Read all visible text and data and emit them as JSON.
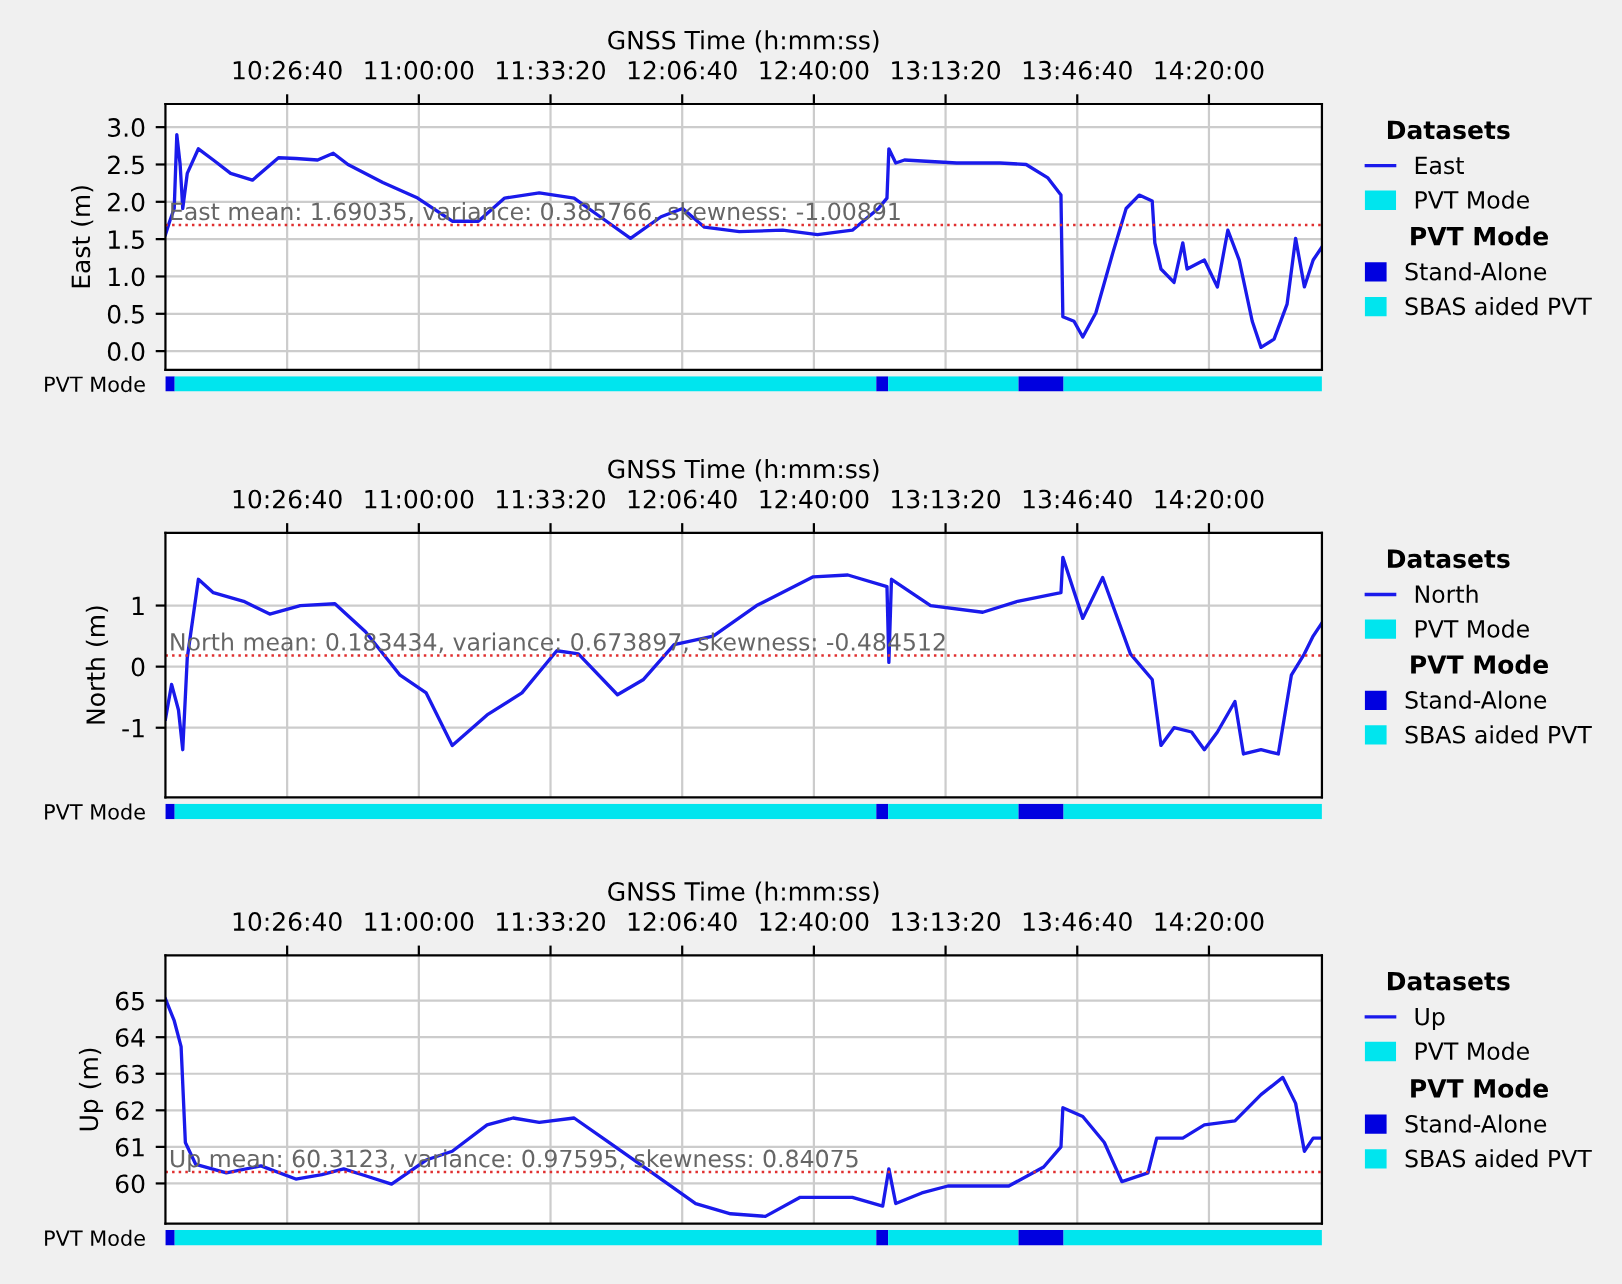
{
  "chart_data": [
    {
      "type": "line",
      "xlabel": "GNSS Time (h:mm:ss)",
      "ylabel": "East (m)",
      "legend_title": "Datasets",
      "legend": "right",
      "grid": true,
      "xlim": [
        9.931,
        14.81
      ],
      "ylim": [
        -0.25,
        3.31
      ],
      "xticks": [
        {
          "value": 10.44444,
          "label": "10:26:40"
        },
        {
          "value": 11.0,
          "label": "11:00:00"
        },
        {
          "value": 11.55556,
          "label": "11:33:20"
        },
        {
          "value": 12.11111,
          "label": "12:06:40"
        },
        {
          "value": 12.66667,
          "label": "12:40:00"
        },
        {
          "value": 13.22222,
          "label": "13:13:20"
        },
        {
          "value": 13.77778,
          "label": "13:46:40"
        },
        {
          "value": 14.33333,
          "label": "14:20:00"
        }
      ],
      "yticks": [
        {
          "value": 0,
          "label": "0.0"
        },
        {
          "value": 0.5,
          "label": "0.5"
        },
        {
          "value": 1,
          "label": "1.0"
        },
        {
          "value": 1.5,
          "label": "1.5"
        },
        {
          "value": 2,
          "label": "2.0"
        },
        {
          "value": 2.5,
          "label": "2.5"
        },
        {
          "value": 3,
          "label": "3.0"
        }
      ],
      "ref_lines": [
        {
          "axis": "y",
          "value": 1.69035,
          "label": "East mean: 1.69035, variance: 0.385766, skewness: -1.00891",
          "color": "#e03030",
          "line_style": "dotted"
        }
      ],
      "series": [
        {
          "name": "East",
          "color": "#1a1aeb",
          "x": [
            9.931,
            9.949,
            9.968,
            9.979,
            9.993,
            10.004,
            10.023,
            10.07,
            10.133,
            10.206,
            10.298,
            10.408,
            10.481,
            10.573,
            10.639,
            10.701,
            10.848,
            10.995,
            11.141,
            11.251,
            11.362,
            11.508,
            11.655,
            11.765,
            11.893,
            12.022,
            12.113,
            12.205,
            12.352,
            12.535,
            12.682,
            12.829,
            12.939,
            12.975,
            12.983,
            13.012,
            13.049,
            13.269,
            13.452,
            13.562,
            13.654,
            13.709,
            13.717,
            13.764,
            13.801,
            13.856,
            13.929,
            13.984,
            14.039,
            14.094,
            14.105,
            14.131,
            14.186,
            14.223,
            14.241,
            14.314,
            14.369,
            14.413,
            14.461,
            14.516,
            14.553,
            14.608,
            14.663,
            14.699,
            14.736,
            14.773,
            14.809
          ],
          "values": [
            1.56,
            1.74,
            1.91,
            2.9,
            2.5,
            1.91,
            2.38,
            2.71,
            2.56,
            2.38,
            2.29,
            2.59,
            2.58,
            2.56,
            2.65,
            2.5,
            2.26,
            2.05,
            1.74,
            1.74,
            2.05,
            2.12,
            2.05,
            1.8,
            1.51,
            1.8,
            1.91,
            1.66,
            1.6,
            1.62,
            1.56,
            1.62,
            1.91,
            2.05,
            2.71,
            2.52,
            2.56,
            2.52,
            2.52,
            2.5,
            2.32,
            2.09,
            0.46,
            0.4,
            0.19,
            0.51,
            1.33,
            1.91,
            2.09,
            2.01,
            1.45,
            1.1,
            0.92,
            1.45,
            1.1,
            1.22,
            0.86,
            1.62,
            1.22,
            0.4,
            0.05,
            0.16,
            0.63,
            1.51,
            0.86,
            1.22,
            1.39
          ]
        }
      ]
    },
    {
      "type": "bar",
      "orientation": "horizontal",
      "categories": [
        "PVT Mode"
      ],
      "xlim": [
        9.931,
        14.81
      ],
      "tick_labels": "y",
      "legend_title": "PVT Mode",
      "legend": "right",
      "series": [
        {
          "name": "Stand-Alone",
          "color": "#0000e0",
          "base": [
            9.93
          ],
          "values": [
            0.04
          ]
        },
        {
          "name": "SBAS aided PVT",
          "color": "#00e5ee",
          "base": [
            9.97
          ],
          "values": [
            2.96
          ]
        },
        {
          "color": "#0000e0",
          "base": [
            12.93
          ],
          "values": [
            0.05
          ]
        },
        {
          "color": "#00e5ee",
          "base": [
            12.98
          ],
          "values": [
            0.55
          ]
        },
        {
          "color": "#0000e0",
          "base": [
            13.53
          ],
          "values": [
            0.19
          ]
        },
        {
          "color": "#00e5ee",
          "base": [
            13.72
          ],
          "values": [
            1.09
          ]
        }
      ]
    },
    {
      "type": "line",
      "xlabel": "GNSS Time (h:mm:ss)",
      "ylabel": "North (m)",
      "legend_title": "Datasets",
      "legend": "right",
      "grid": true,
      "xlim": [
        9.931,
        14.81
      ],
      "ylim": [
        -2.14,
        2.19
      ],
      "xticks": [
        {
          "value": 10.44444,
          "label": "10:26:40"
        },
        {
          "value": 11.0,
          "label": "11:00:00"
        },
        {
          "value": 11.55556,
          "label": "11:33:20"
        },
        {
          "value": 12.11111,
          "label": "12:06:40"
        },
        {
          "value": 12.66667,
          "label": "12:40:00"
        },
        {
          "value": 13.22222,
          "label": "13:13:20"
        },
        {
          "value": 13.77778,
          "label": "13:46:40"
        },
        {
          "value": 14.33333,
          "label": "14:20:00"
        }
      ],
      "yticks": [
        -1,
        0,
        1
      ],
      "ref_lines": [
        {
          "axis": "y",
          "value": 0.183434,
          "label": "North mean: 0.183434, variance: 0.673897, skewness: -0.484512",
          "color": "#e03030",
          "line_style": "dotted"
        }
      ],
      "series": [
        {
          "name": "North",
          "color": "#1a1aeb",
          "x": [
            9.931,
            9.957,
            9.986,
            10.004,
            10.023,
            10.07,
            10.133,
            10.261,
            10.371,
            10.5,
            10.646,
            10.775,
            10.921,
            11.031,
            11.141,
            11.288,
            11.435,
            11.582,
            11.673,
            11.838,
            11.948,
            12.077,
            12.242,
            12.425,
            12.664,
            12.81,
            12.975,
            12.983,
            12.994,
            13.159,
            13.379,
            13.526,
            13.709,
            13.717,
            13.801,
            13.885,
            14.002,
            14.094,
            14.131,
            14.186,
            14.26,
            14.314,
            14.369,
            14.443,
            14.479,
            14.553,
            14.626,
            14.681,
            14.736,
            14.773,
            14.809
          ],
          "values": [
            -0.86,
            -0.29,
            -0.71,
            -1.36,
            0.14,
            1.43,
            1.21,
            1.07,
            0.86,
            1.0,
            1.03,
            0.57,
            -0.14,
            -0.43,
            -1.29,
            -0.79,
            -0.43,
            0.26,
            0.21,
            -0.46,
            -0.21,
            0.36,
            0.5,
            1.0,
            1.47,
            1.5,
            1.31,
            0.07,
            1.43,
            1.0,
            0.89,
            1.07,
            1.21,
            1.79,
            0.79,
            1.46,
            0.21,
            -0.21,
            -1.29,
            -1.0,
            -1.07,
            -1.36,
            -1.07,
            -0.57,
            -1.43,
            -1.36,
            -1.43,
            -0.14,
            0.21,
            0.5,
            0.71
          ]
        }
      ]
    },
    {
      "type": "bar",
      "orientation": "horizontal",
      "categories": [
        "PVT Mode"
      ],
      "xlim": [
        9.931,
        14.81
      ],
      "tick_labels": "y",
      "legend_title": "PVT Mode",
      "legend": "right",
      "series": [
        {
          "name": "Stand-Alone",
          "color": "#0000e0",
          "base": [
            9.93
          ],
          "values": [
            0.04
          ]
        },
        {
          "name": "SBAS aided PVT",
          "color": "#00e5ee",
          "base": [
            9.97
          ],
          "values": [
            2.96
          ]
        },
        {
          "color": "#0000e0",
          "base": [
            12.93
          ],
          "values": [
            0.05
          ]
        },
        {
          "color": "#00e5ee",
          "base": [
            12.98
          ],
          "values": [
            0.55
          ]
        },
        {
          "color": "#0000e0",
          "base": [
            13.53
          ],
          "values": [
            0.19
          ]
        },
        {
          "color": "#00e5ee",
          "base": [
            13.72
          ],
          "values": [
            1.09
          ]
        }
      ]
    },
    {
      "type": "line",
      "xlabel": "GNSS Time (h:mm:ss)",
      "ylabel": "Up (m)",
      "legend_title": "Datasets",
      "legend": "right",
      "grid": true,
      "xlim": [
        9.931,
        14.81
      ],
      "ylim": [
        58.9,
        66.24
      ],
      "xticks": [
        {
          "value": 10.44444,
          "label": "10:26:40"
        },
        {
          "value": 11.0,
          "label": "11:00:00"
        },
        {
          "value": 11.55556,
          "label": "11:33:20"
        },
        {
          "value": 12.11111,
          "label": "12:06:40"
        },
        {
          "value": 12.66667,
          "label": "12:40:00"
        },
        {
          "value": 13.22222,
          "label": "13:13:20"
        },
        {
          "value": 13.77778,
          "label": "13:46:40"
        },
        {
          "value": 14.33333,
          "label": "14:20:00"
        }
      ],
      "yticks": [
        60,
        61,
        62,
        63,
        64,
        65
      ],
      "ref_lines": [
        {
          "axis": "y",
          "value": 60.3123,
          "label": "Up mean: 60.3123, variance: 0.97595, skewness: 0.84075",
          "color": "#e03030",
          "line_style": "dotted"
        }
      ],
      "series": [
        {
          "name": "Up",
          "color": "#1a1aeb",
          "x": [
            9.931,
            9.968,
            9.997,
            10.015,
            10.059,
            10.188,
            10.334,
            10.481,
            10.591,
            10.683,
            10.775,
            10.885,
            11.031,
            11.141,
            11.288,
            11.398,
            11.508,
            11.655,
            11.802,
            11.985,
            12.168,
            12.315,
            12.462,
            12.609,
            12.829,
            12.957,
            12.983,
            13.012,
            13.122,
            13.232,
            13.489,
            13.636,
            13.709,
            13.717,
            13.801,
            13.892,
            13.966,
            14.076,
            14.113,
            14.223,
            14.314,
            14.443,
            14.553,
            14.645,
            14.699,
            14.736,
            14.773,
            14.809
          ],
          "values": [
            65.05,
            64.45,
            63.74,
            61.12,
            60.52,
            60.29,
            60.48,
            60.12,
            60.24,
            60.4,
            60.21,
            59.98,
            60.64,
            60.88,
            61.6,
            61.79,
            61.67,
            61.79,
            61.12,
            60.29,
            59.45,
            59.17,
            59.1,
            59.62,
            59.62,
            59.38,
            60.4,
            59.45,
            59.74,
            59.93,
            59.93,
            60.45,
            61.0,
            62.07,
            61.83,
            61.12,
            60.05,
            60.29,
            61.24,
            61.24,
            61.6,
            61.71,
            62.43,
            62.9,
            62.19,
            60.88,
            61.24,
            61.24
          ]
        }
      ]
    },
    {
      "type": "bar",
      "orientation": "horizontal",
      "categories": [
        "PVT Mode"
      ],
      "xlim": [
        9.931,
        14.81
      ],
      "tick_labels": "y",
      "legend_title": "PVT Mode",
      "legend": "right",
      "series": [
        {
          "name": "Stand-Alone",
          "color": "#0000e0",
          "base": [
            9.93
          ],
          "values": [
            0.04
          ]
        },
        {
          "name": "SBAS aided PVT",
          "color": "#00e5ee",
          "base": [
            9.97
          ],
          "values": [
            2.96
          ]
        },
        {
          "color": "#0000e0",
          "base": [
            12.93
          ],
          "values": [
            0.05
          ]
        },
        {
          "color": "#00e5ee",
          "base": [
            12.98
          ],
          "values": [
            0.55
          ]
        },
        {
          "color": "#0000e0",
          "base": [
            13.53
          ],
          "values": [
            0.19
          ]
        },
        {
          "color": "#00e5ee",
          "base": [
            13.72
          ],
          "values": [
            1.09
          ]
        }
      ]
    }
  ]
}
